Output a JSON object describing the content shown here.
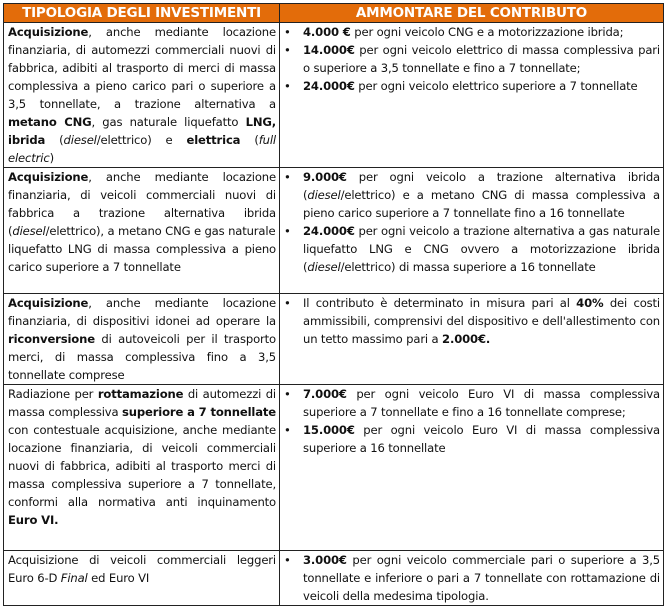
{
  "header": {
    "col1": "TIPOLOGIA DEGLI INVESTIMENTI",
    "col2": "AMMONTARE DEL CONTRIBUTO",
    "header_bg": "#e36c0a"
  },
  "rows": [
    {
      "left": [
        {
          "t": "Acquisizione",
          "b": true
        },
        {
          "t": ", anche mediante locazione finanziaria, di automezzi commerciali nuovi di fabbrica, adibiti al trasporto di merci di massa complessiva a pieno carico pari o superiore a 3,5 tonnellate, a trazione alternativa a "
        },
        {
          "t": "metano CNG",
          "b": true
        },
        {
          "t": ", gas naturale liquefatto "
        },
        {
          "t": "LNG, ibrida",
          "b": true
        },
        {
          "t": " ("
        },
        {
          "t": "diesel",
          "i": true
        },
        {
          "t": "/elettrico) e "
        },
        {
          "t": "elettrica",
          "b": true
        },
        {
          "t": " ("
        },
        {
          "t": "full electric",
          "i": true
        },
        {
          "t": ")"
        }
      ],
      "right": [
        [
          {
            "t": "4.000 €",
            "b": true
          },
          {
            "t": " per ogni veicolo CNG e a motorizzazione ibrida;"
          }
        ],
        [
          {
            "t": "14.000€",
            "b": true
          },
          {
            "t": " per ogni veicolo elettrico di massa complessiva pari o superiore a 3,5 tonnellate e fino a 7 tonnellate;"
          }
        ],
        [
          {
            "t": "24.000€",
            "b": true
          },
          {
            "t": " per ogni veicolo elettrico superiore a 7 tonnellate"
          }
        ]
      ]
    },
    {
      "left": [
        {
          "t": "Acquisizione",
          "b": true
        },
        {
          "t": ", anche mediante locazione finanziaria, di veicoli commerciali nuovi di fabbrica a trazione alternativa ibrida ("
        },
        {
          "t": "diesel",
          "i": true
        },
        {
          "t": "/elettrico), a metano CNG e gas naturale"
        },
        {
          "br": true
        },
        {
          "t": "liquefatto LNG di massa complessiva a pieno carico superiore a 7 tonnellate"
        }
      ],
      "right": [
        [
          {
            "t": "9.000€",
            "b": true
          },
          {
            "t": " per ogni veicolo a trazione alternativa ibrida ("
          },
          {
            "t": "diesel",
            "i": true
          },
          {
            "t": "/elettrico) e a metano CNG di massa complessiva a pieno carico superiore a 7 tonnellate fino a 16 tonnellate"
          }
        ],
        [
          {
            "t": "24.000€",
            "b": true
          },
          {
            "t": " per ogni veicolo a trazione alternativa a gas naturale liquefatto LNG e CNG ovvero a motorizzazione ibrida ("
          },
          {
            "t": "diesel",
            "i": true
          },
          {
            "t": "/elettrico) di massa superiore a 16 tonnellate"
          }
        ]
      ]
    },
    {
      "left": [
        {
          "t": "Acquisizione",
          "b": true
        },
        {
          "t": ", anche mediante locazione finanziaria, di dispositivi idonei ad operare la "
        },
        {
          "t": "riconversione",
          "b": true
        },
        {
          "t": " di autoveicoli per il trasporto merci, di massa complessiva fino a 3,5 tonnellate comprese"
        }
      ],
      "right": [
        [
          {
            "t": "Il contributo è determinato in misura pari al "
          },
          {
            "t": "40%",
            "b": true
          },
          {
            "t": " dei costi ammissibili, comprensivi del dispositivo e dell'allestimento con un tetto massimo pari a "
          },
          {
            "t": "2.000€.",
            "b": true
          }
        ]
      ]
    },
    {
      "left": [
        {
          "t": "Radiazione per "
        },
        {
          "t": "rottamazione",
          "b": true
        },
        {
          "t": " di automezzi di massa complessiva "
        },
        {
          "t": "superiore a 7 tonnellate",
          "b": true
        },
        {
          "t": " con contestuale acquisizione, anche mediante locazione finanziaria, di veicoli commerciali nuovi di fabbrica, adibiti al trasporto merci di massa complessiva superiore a 7 tonnellate, conformi alla normativa anti inquinamento "
        },
        {
          "t": "Euro VI.",
          "b": true
        }
      ],
      "right": [
        [
          {
            "t": "7.000€",
            "b": true
          },
          {
            "t": " per ogni veicolo Euro VI di massa complessiva superiore a 7 tonnellate e fino a 16 tonnellate comprese;"
          }
        ],
        [
          {
            "t": "15.000€",
            "b": true
          },
          {
            "t": " per ogni veicolo Euro VI di massa complessiva superiore a 16 tonnellate"
          }
        ]
      ]
    },
    {
      "left": [
        {
          "t": "Acquisizione di veicoli commerciali leggeri Euro 6-D "
        },
        {
          "t": "Final",
          "i": true
        },
        {
          "t": " ed Euro VI"
        }
      ],
      "right": [
        [
          {
            "t": "3.000€",
            "b": true
          },
          {
            "t": " per ogni veicolo commerciale pari o superiore a 3,5 tonnellate e inferiore o pari a 7 tonnellate con rottamazione di veicoli della medesima tipologia."
          }
        ]
      ]
    }
  ]
}
